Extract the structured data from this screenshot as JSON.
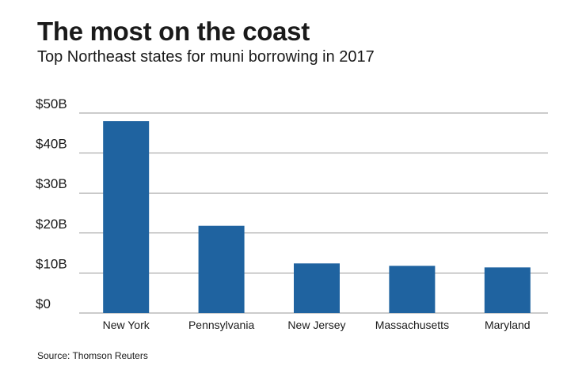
{
  "title": "The most on the coast",
  "subtitle": "Top Northeast states for muni borrowing in 2017",
  "source": "Source: Thomson Reuters",
  "colors": {
    "bar": "#1f63a0",
    "grid": "#9a9a9a",
    "text": "#1a1a1a"
  },
  "chart_data": {
    "type": "bar",
    "categories": [
      "New York",
      "Pennsylvania",
      "New Jersey",
      "Massachusetts",
      "Maryland"
    ],
    "values": [
      48,
      21.8,
      12.4,
      11.8,
      11.4
    ],
    "ytick_labels": [
      "$0",
      "$10B",
      "$20B",
      "$30B",
      "$40B",
      "$50B"
    ],
    "ytick_values": [
      0,
      10,
      20,
      30,
      40,
      50
    ],
    "ylim": [
      0,
      50
    ],
    "units": "billions of dollars",
    "grid": true,
    "legend": false
  }
}
